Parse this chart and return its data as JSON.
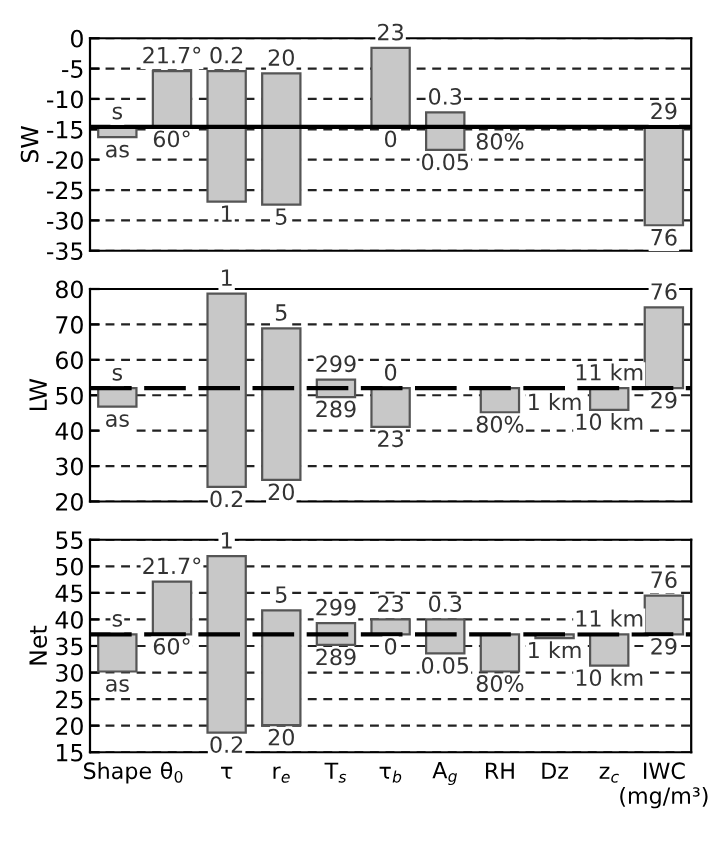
{
  "chart_data": [
    {
      "type": "bar",
      "ylabel": "SW",
      "categories": [
        "Shape",
        "θ$_{0}$",
        "τ",
        "r$_{e}$",
        "T$_{s}$",
        "τ$_{b}$",
        "A$_{g}$",
        "RH",
        "Dz",
        "z$_{c}$",
        "IWC\n(mg/m³)"
      ],
      "values": [
        1.7,
        9.2,
        21.5,
        21.6,
        null,
        13.0,
        6.2,
        null,
        null,
        null,
        16.2
      ],
      "base": [
        -16.3,
        -14.6,
        -26.9,
        -27.4,
        null,
        -14.6,
        -18.4,
        null,
        null,
        null,
        -30.8
      ],
      "color": "#c8c8c8",
      "ylim": [
        -35,
        0
      ],
      "yticks": [
        -35,
        -30,
        -25,
        -20,
        -15,
        -10,
        -5,
        0
      ],
      "grid": "y",
      "tick_labels": "y",
      "ref_lines": [
        {
          "axis": "y",
          "value": -14.6,
          "label": null,
          "color": "#000000",
          "line_style": "solid"
        }
      ],
      "annotations": [
        {
          "text": "s",
          "x": "Shape",
          "y": -14.6
        },
        {
          "text": "as",
          "x": "Shape",
          "y": -16.3
        },
        {
          "text": "21.7°",
          "x": "θ$_{0}$",
          "y": -5.4
        },
        {
          "text": "60°",
          "x": "θ$_{0}$",
          "y": -14.6
        },
        {
          "text": "0.2",
          "x": "τ",
          "y": -5.4
        },
        {
          "text": "1",
          "x": "τ",
          "y": -26.9
        },
        {
          "text": "20",
          "x": "r$_{e}$",
          "y": -5.8
        },
        {
          "text": "5",
          "x": "r$_{e}$",
          "y": -27.4
        },
        {
          "text": "23",
          "x": "τ$_{b}$",
          "y": -1.6
        },
        {
          "text": "0",
          "x": "τ$_{b}$",
          "y": -14.6
        },
        {
          "text": "0.3",
          "x": "A$_{g}$",
          "y": -12.2
        },
        {
          "text": "0.05",
          "x": "A$_{g}$",
          "y": -18.4
        },
        {
          "text": "80%",
          "x": "RH",
          "y": -15.0
        },
        {
          "text": "29",
          "x": "IWC\n(mg/m³)",
          "y": -14.6
        },
        {
          "text": "76",
          "x": "IWC\n(mg/m³)",
          "y": -30.8
        }
      ]
    },
    {
      "type": "bar",
      "ylabel": "LW",
      "categories": [
        "Shape",
        "θ$_{0}$",
        "τ",
        "r$_{e}$",
        "T$_{s}$",
        "τ$_{b}$",
        "A$_{g}$",
        "RH",
        "Dz",
        "z$_{c}$",
        "IWC\n(mg/m³)"
      ],
      "values": [
        5.2,
        null,
        54.6,
        42.8,
        4.9,
        10.9,
        null,
        6.8,
        null,
        6.1,
        22.8
      ],
      "base": [
        46.8,
        null,
        24.1,
        26.1,
        49.5,
        41.1,
        null,
        45.2,
        null,
        45.9,
        52.0
      ],
      "color": "#c8c8c8",
      "ylim": [
        20,
        80
      ],
      "yticks": [
        20,
        30,
        40,
        50,
        60,
        70,
        80
      ],
      "grid": "y",
      "tick_labels": "y",
      "ref_lines": [
        {
          "axis": "y",
          "value": 52.0,
          "label": null,
          "color": "#000000",
          "line_style": "dashed"
        }
      ],
      "annotations": [
        {
          "text": "s",
          "x": "Shape",
          "y": 52.0
        },
        {
          "text": "as",
          "x": "Shape",
          "y": 46.8
        },
        {
          "text": "1",
          "x": "τ",
          "y": 78.7
        },
        {
          "text": "0.2",
          "x": "τ",
          "y": 24.1
        },
        {
          "text": "5",
          "x": "r$_{e}$",
          "y": 68.9
        },
        {
          "text": "20",
          "x": "r$_{e}$",
          "y": 26.1
        },
        {
          "text": "299",
          "x": "T$_{s}$",
          "y": 54.4
        },
        {
          "text": "289",
          "x": "T$_{s}$",
          "y": 49.5
        },
        {
          "text": "0",
          "x": "τ$_{b}$",
          "y": 52.0
        },
        {
          "text": "23",
          "x": "τ$_{b}$",
          "y": 41.1
        },
        {
          "text": "80%",
          "x": "RH",
          "y": 45.2
        },
        {
          "text": "1 km",
          "x": "Dz",
          "y": 51.5
        },
        {
          "text": "11 km",
          "x": "z$_{c}$",
          "y": 52.0
        },
        {
          "text": "10 km",
          "x": "z$_{c}$",
          "y": 45.9
        },
        {
          "text": "76",
          "x": "IWC\n(mg/m³)",
          "y": 74.8
        },
        {
          "text": "29",
          "x": "IWC\n(mg/m³)",
          "y": 52.0
        }
      ]
    },
    {
      "type": "bar",
      "ylabel": "Net",
      "categories": [
        "Shape",
        "θ$_{0}$",
        "τ",
        "r$_{e}$",
        "T$_{s}$",
        "τ$_{b}$",
        "A$_{g}$",
        "RH",
        "Dz",
        "z$_{c}$",
        "IWC\n(mg/m³)"
      ],
      "values": [
        7.0,
        9.9,
        33.2,
        21.6,
        4.1,
        2.8,
        6.4,
        7.0,
        0.7,
        5.9,
        7.3
      ],
      "base": [
        30.2,
        37.2,
        18.7,
        20.1,
        35.2,
        37.2,
        33.6,
        30.2,
        36.5,
        31.3,
        37.2
      ],
      "color": "#c8c8c8",
      "ylim": [
        15,
        55
      ],
      "yticks": [
        15,
        20,
        25,
        30,
        35,
        40,
        45,
        50,
        55
      ],
      "grid": "y",
      "ref_lines": [
        {
          "axis": "y",
          "value": 37.2,
          "label": null,
          "color": "#000000",
          "line_style": "dashed"
        }
      ],
      "annotations": [
        {
          "text": "s",
          "x": "Shape",
          "y": 37.2
        },
        {
          "text": "as",
          "x": "Shape",
          "y": 30.2
        },
        {
          "text": "21.7°",
          "x": "θ$_{0}$",
          "y": 47.1
        },
        {
          "text": "60°",
          "x": "θ$_{0}$",
          "y": 37.2
        },
        {
          "text": "1",
          "x": "τ",
          "y": 51.9
        },
        {
          "text": "0.2",
          "x": "τ",
          "y": 18.7
        },
        {
          "text": "5",
          "x": "r$_{e}$",
          "y": 41.7
        },
        {
          "text": "20",
          "x": "r$_{e}$",
          "y": 20.1
        },
        {
          "text": "299",
          "x": "T$_{s}$",
          "y": 39.3
        },
        {
          "text": "289",
          "x": "T$_{s}$",
          "y": 35.2
        },
        {
          "text": "23",
          "x": "τ$_{b}$",
          "y": 40.0
        },
        {
          "text": "0",
          "x": "τ$_{b}$",
          "y": 37.2
        },
        {
          "text": "0.3",
          "x": "A$_{g}$",
          "y": 40.0
        },
        {
          "text": "0.05",
          "x": "A$_{g}$",
          "y": 33.6
        },
        {
          "text": "80%",
          "x": "RH",
          "y": 30.2
        },
        {
          "text": "1 km",
          "x": "Dz",
          "y": 36.5
        },
        {
          "text": "11 km",
          "x": "z$_{c}$",
          "y": 37.2
        },
        {
          "text": "10 km",
          "x": "z$_{c}$",
          "y": 31.3
        },
        {
          "text": "76",
          "x": "IWC\n(mg/m³)",
          "y": 44.5
        },
        {
          "text": "29",
          "x": "IWC\n(mg/m³)",
          "y": 37.2
        }
      ]
    }
  ]
}
